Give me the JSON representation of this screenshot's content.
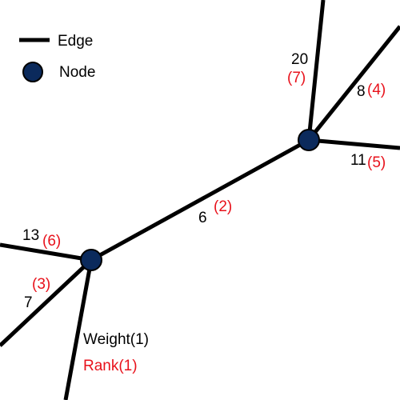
{
  "colors": {
    "edge": "#000000",
    "node_fill": "#0b2a5c",
    "node_stroke": "#000000",
    "weight_text": "#000000",
    "rank_text": "#e8111b",
    "background": "#ffffff"
  },
  "legend": {
    "edge_label": "Edge",
    "node_label": "Node"
  },
  "nodes": [
    {
      "id": "A"
    },
    {
      "id": "B"
    }
  ],
  "edges": [
    {
      "id": "A-B",
      "weight": "6",
      "rank": "(2)"
    },
    {
      "id": "A-left",
      "weight": "13",
      "rank": "(6)"
    },
    {
      "id": "A-lower-left",
      "weight": "7",
      "rank": "(3)"
    },
    {
      "id": "A-bottom",
      "weight": "Weight(1)",
      "rank": "Rank(1)"
    },
    {
      "id": "B-top",
      "weight": "20",
      "rank": "(7)"
    },
    {
      "id": "B-upper-right",
      "weight": "8",
      "rank": "(4)"
    },
    {
      "id": "B-right",
      "weight": "11",
      "rank": "(5)"
    }
  ]
}
